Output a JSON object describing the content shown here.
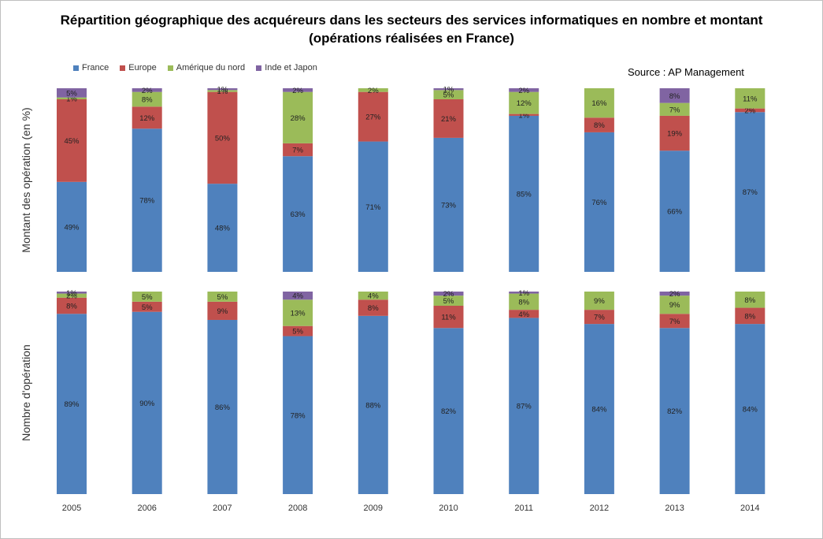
{
  "title_line1": "Répartition géographique des acquéreurs dans les secteurs des services informatiques en nombre et montant",
  "title_line2": "(opérations réalisées en France)",
  "source": "Source : AP Management",
  "colors": {
    "France": "#4f81bd",
    "Europe": "#c0504d",
    "Amérique du nord": "#9bbb59",
    "Inde et Japon": "#8064a2"
  },
  "chart_data": [
    {
      "type": "bar",
      "stacked": true,
      "ylabel": "Montant des opération (en %)",
      "categories": [
        "2005",
        "2006",
        "2007",
        "2008",
        "2009",
        "2010",
        "2011",
        "2012",
        "2013",
        "2014"
      ],
      "series": [
        {
          "name": "France",
          "values": [
            49,
            78,
            48,
            63,
            71,
            73,
            85,
            76,
            66,
            87
          ]
        },
        {
          "name": "Europe",
          "values": [
            45,
            12,
            50,
            7,
            27,
            21,
            1,
            8,
            19,
            2
          ]
        },
        {
          "name": "Amérique du nord",
          "values": [
            1,
            8,
            1,
            28,
            2,
            5,
            12,
            16,
            7,
            11
          ]
        },
        {
          "name": "Inde et Japon",
          "values": [
            5,
            2,
            1,
            2,
            0,
            1,
            2,
            0,
            8,
            0
          ]
        }
      ]
    },
    {
      "type": "bar",
      "stacked": true,
      "ylabel": "Nombre d'opération",
      "categories": [
        "2005",
        "2006",
        "2007",
        "2008",
        "2009",
        "2010",
        "2011",
        "2012",
        "2013",
        "2014"
      ],
      "series": [
        {
          "name": "France",
          "values": [
            89,
            90,
            86,
            78,
            88,
            82,
            87,
            84,
            82,
            84
          ]
        },
        {
          "name": "Europe",
          "values": [
            8,
            5,
            9,
            5,
            8,
            11,
            4,
            7,
            7,
            8
          ]
        },
        {
          "name": "Amérique du nord",
          "values": [
            2,
            5,
            5,
            13,
            4,
            5,
            8,
            9,
            9,
            8
          ]
        },
        {
          "name": "Inde et Japon",
          "values": [
            1,
            0,
            0,
            4,
            0,
            2,
            1,
            0,
            2,
            0
          ]
        }
      ]
    }
  ],
  "legend": [
    "France",
    "Europe",
    "Amérique du nord",
    "Inde et Japon"
  ]
}
